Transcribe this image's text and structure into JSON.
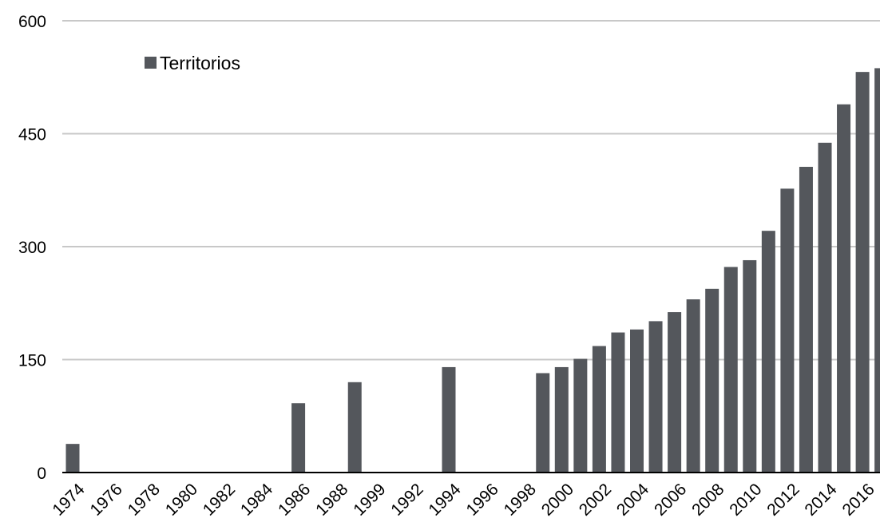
{
  "chart_data": {
    "type": "bar",
    "title": "",
    "xlabel": "",
    "ylabel": "",
    "ylim": [
      0,
      600
    ],
    "yticks": [
      "0",
      "150",
      "300",
      "450",
      "600"
    ],
    "grid": true,
    "legend_position": "top-left",
    "colors": {
      "bar": "#54575c",
      "grid": "#c8c8c8",
      "axis": "#000000"
    },
    "series": [
      {
        "name": "Territorios",
        "points": [
          {
            "x": "1974",
            "y": 38
          },
          {
            "x": "1986",
            "y": 92
          },
          {
            "x": "1989",
            "y": 120
          },
          {
            "x": "1994",
            "y": 140
          },
          {
            "x": "1999",
            "y": 132
          },
          {
            "x": "2000",
            "y": 140
          },
          {
            "x": "2001",
            "y": 151
          },
          {
            "x": "2002",
            "y": 168
          },
          {
            "x": "2003",
            "y": 186
          },
          {
            "x": "2004",
            "y": 190
          },
          {
            "x": "2005",
            "y": 201
          },
          {
            "x": "2006",
            "y": 213
          },
          {
            "x": "2007",
            "y": 230
          },
          {
            "x": "2008",
            "y": 244
          },
          {
            "x": "2009",
            "y": 273
          },
          {
            "x": "2010",
            "y": 282
          },
          {
            "x": "2011",
            "y": 321
          },
          {
            "x": "2012",
            "y": 377
          },
          {
            "x": "2013",
            "y": 406
          },
          {
            "x": "2014",
            "y": 438
          },
          {
            "x": "2015",
            "y": 489
          },
          {
            "x": "2016",
            "y": 532
          },
          {
            "x": "2017",
            "y": 537
          }
        ]
      }
    ],
    "xtick_labels": [
      "1974",
      "1976",
      "1978",
      "1980",
      "1982",
      "1984",
      "1986",
      "1988",
      "1999",
      "1992",
      "1994",
      "1996",
      "1998",
      "2000",
      "2002",
      "2004",
      "2006",
      "2008",
      "2010",
      "2012",
      "2014",
      "2016"
    ]
  }
}
